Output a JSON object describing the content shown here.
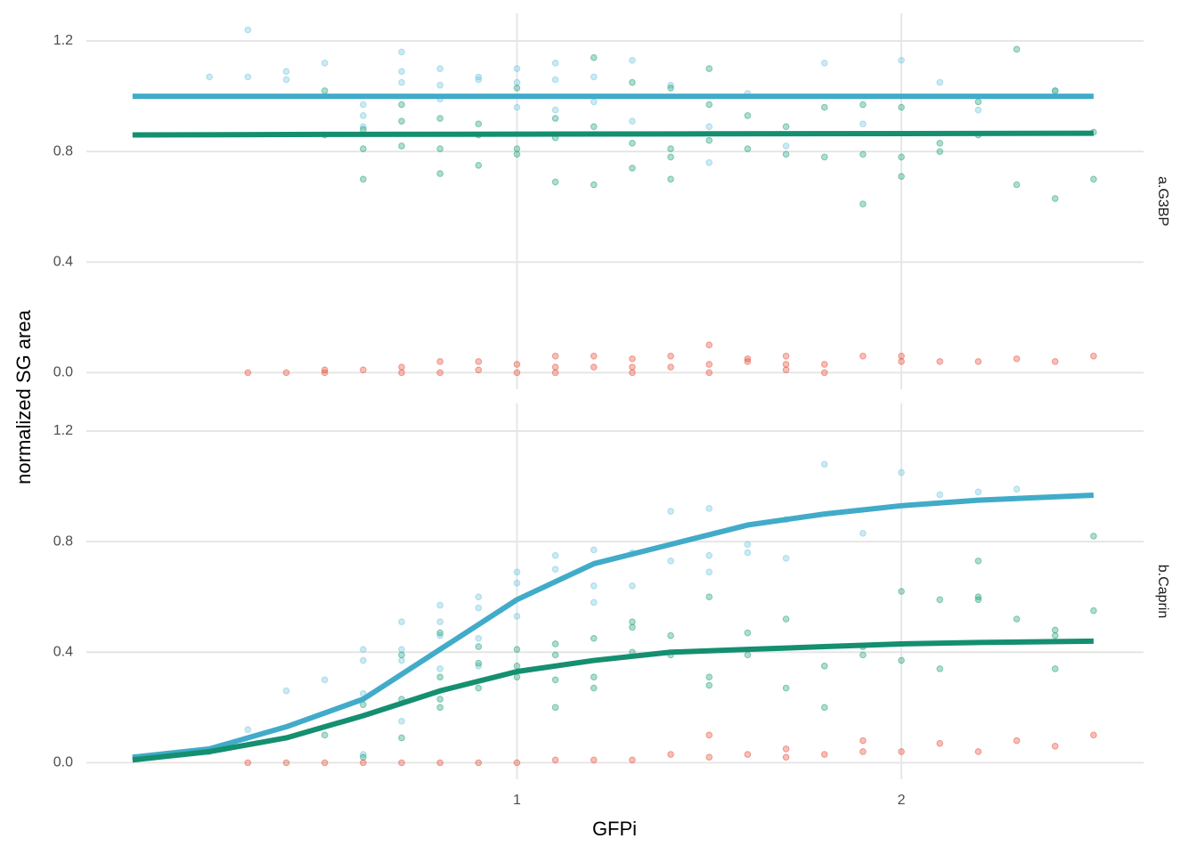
{
  "chart_data": [
    {
      "type": "scatter",
      "facet_label": "a.G3BP",
      "ylabel": "normalized SG area",
      "xlim": [
        -0.12,
        2.63
      ],
      "ylim": [
        -0.06,
        1.3
      ],
      "xticks": [
        1,
        2
      ],
      "yticks": [
        {
          "value": 0,
          "label": "0.0"
        },
        0.4,
        0.8,
        1.2
      ],
      "grid": true,
      "series": [
        {
          "type": "scatter",
          "color": "#6cc3dd",
          "x": [
            0.2,
            0.3,
            0.3,
            0.4,
            0.4,
            0.5,
            0.6,
            0.6,
            0.6,
            0.7,
            0.7,
            0.7,
            0.8,
            0.8,
            0.8,
            0.9,
            0.9,
            1.0,
            1.0,
            1.0,
            1.1,
            1.1,
            1.1,
            1.2,
            1.2,
            1.3,
            1.3,
            1.4,
            1.5,
            1.5,
            1.6,
            1.7,
            1.8,
            1.9,
            2.0,
            2.1,
            2.2,
            2.4
          ],
          "values": [
            1.07,
            1.24,
            1.07,
            1.09,
            1.06,
            1.12,
            0.97,
            0.93,
            0.89,
            1.16,
            1.09,
            1.05,
            1.1,
            1.04,
            0.99,
            1.07,
            1.06,
            1.1,
            1.05,
            0.96,
            1.12,
            1.06,
            0.95,
            1.07,
            0.98,
            1.13,
            0.91,
            1.04,
            0.89,
            0.76,
            1.01,
            0.82,
            1.12,
            0.9,
            1.13,
            1.05,
            0.95,
            1.02
          ]
        },
        {
          "type": "scatter",
          "color": "#1b9e77",
          "x": [
            0.5,
            0.5,
            0.6,
            0.6,
            0.6,
            0.7,
            0.7,
            0.7,
            0.8,
            0.8,
            0.8,
            0.9,
            0.9,
            0.9,
            1.0,
            1.0,
            1.0,
            1.1,
            1.1,
            1.1,
            1.2,
            1.2,
            1.2,
            1.3,
            1.3,
            1.3,
            1.4,
            1.4,
            1.4,
            1.4,
            1.5,
            1.5,
            1.5,
            1.6,
            1.6,
            1.7,
            1.7,
            1.8,
            1.8,
            1.9,
            1.9,
            1.9,
            2.0,
            2.0,
            2.0,
            2.1,
            2.1,
            2.2,
            2.2,
            2.3,
            2.3,
            2.4,
            2.4,
            2.5,
            2.5
          ],
          "values": [
            1.02,
            0.86,
            0.88,
            0.81,
            0.7,
            0.97,
            0.91,
            0.82,
            0.92,
            0.81,
            0.72,
            0.9,
            0.86,
            0.75,
            1.03,
            0.81,
            0.79,
            0.92,
            0.85,
            0.69,
            1.14,
            0.89,
            0.68,
            1.05,
            0.83,
            0.74,
            1.03,
            0.81,
            0.78,
            0.7,
            1.1,
            0.84,
            0.97,
            0.93,
            0.81,
            0.89,
            0.79,
            0.96,
            0.78,
            0.97,
            0.79,
            0.61,
            0.96,
            0.78,
            0.71,
            0.83,
            0.8,
            0.98,
            0.86,
            1.17,
            0.68,
            1.02,
            0.63,
            0.87,
            0.7
          ]
        },
        {
          "type": "scatter",
          "color": "#e64b35",
          "x": [
            0.3,
            0.4,
            0.5,
            0.5,
            0.6,
            0.7,
            0.7,
            0.8,
            0.8,
            0.9,
            0.9,
            1.0,
            1.0,
            1.1,
            1.1,
            1.1,
            1.2,
            1.2,
            1.3,
            1.3,
            1.3,
            1.4,
            1.4,
            1.5,
            1.5,
            1.5,
            1.6,
            1.6,
            1.7,
            1.7,
            1.7,
            1.8,
            1.8,
            1.9,
            2.0,
            2.0,
            2.1,
            2.2,
            2.3,
            2.4,
            2.5
          ],
          "values": [
            0,
            0,
            0.01,
            0,
            0.01,
            0.02,
            0,
            0.04,
            0,
            0.04,
            0.01,
            0.03,
            0,
            0.06,
            0.02,
            0,
            0.06,
            0.02,
            0.05,
            0.02,
            0,
            0.06,
            0.02,
            0.1,
            0.03,
            0,
            0.05,
            0.04,
            0.06,
            0.03,
            0.01,
            0.03,
            0,
            0.06,
            0.06,
            0.04,
            0.04,
            0.04,
            0.05,
            0.04,
            0.06
          ]
        },
        {
          "type": "line",
          "color": "#41abc9",
          "x": [
            0,
            0.5,
            1,
            1.5,
            2,
            2.5
          ],
          "values": [
            1,
            1,
            1,
            1,
            1,
            1
          ]
        },
        {
          "type": "line",
          "color": "#148f6f",
          "x": [
            0,
            0.5,
            1,
            1.5,
            2,
            2.5
          ],
          "values": [
            0.86,
            0.862,
            0.863,
            0.864,
            0.865,
            0.866
          ]
        }
      ]
    },
    {
      "type": "scatter",
      "facet_label": "b.Caprin",
      "xlabel": "GFPi",
      "xlim": [
        -0.12,
        2.63
      ],
      "ylim": [
        -0.06,
        1.3
      ],
      "xticks": [
        1,
        2
      ],
      "yticks": [
        {
          "value": 0,
          "label": "0.0"
        },
        0.4,
        0.8,
        1.2
      ],
      "grid": true,
      "series": [
        {
          "type": "scatter",
          "color": "#6cc3dd",
          "x": [
            0.2,
            0.3,
            0.4,
            0.5,
            0.6,
            0.6,
            0.6,
            0.6,
            0.7,
            0.7,
            0.7,
            0.7,
            0.8,
            0.8,
            0.8,
            0.8,
            0.9,
            0.9,
            0.9,
            0.9,
            1.0,
            1.0,
            1.0,
            1.1,
            1.1,
            1.2,
            1.2,
            1.2,
            1.3,
            1.3,
            1.4,
            1.4,
            1.5,
            1.5,
            1.5,
            1.6,
            1.6,
            1.7,
            1.7,
            1.8,
            1.9,
            2.0,
            2.1,
            2.2,
            2.3
          ],
          "values": [
            0.04,
            0.12,
            0.26,
            0.3,
            0.41,
            0.37,
            0.25,
            0.03,
            0.51,
            0.41,
            0.37,
            0.15,
            0.57,
            0.51,
            0.46,
            0.34,
            0.6,
            0.56,
            0.45,
            0.35,
            0.69,
            0.65,
            0.53,
            0.75,
            0.7,
            0.77,
            0.64,
            0.58,
            0.76,
            0.64,
            0.91,
            0.73,
            0.92,
            0.75,
            0.69,
            0.79,
            0.76,
            0.88,
            0.74,
            1.08,
            0.83,
            1.05,
            0.97,
            0.98,
            0.99
          ]
        },
        {
          "type": "scatter",
          "color": "#1b9e77",
          "x": [
            0.5,
            0.6,
            0.6,
            0.7,
            0.7,
            0.7,
            0.8,
            0.8,
            0.8,
            0.8,
            0.9,
            0.9,
            0.9,
            1.0,
            1.0,
            1.0,
            1.1,
            1.1,
            1.1,
            1.1,
            1.2,
            1.2,
            1.2,
            1.3,
            1.3,
            1.3,
            1.4,
            1.4,
            1.5,
            1.5,
            1.5,
            1.6,
            1.6,
            1.7,
            1.7,
            1.8,
            1.8,
            1.9,
            1.9,
            2.0,
            2.0,
            2.1,
            2.1,
            2.2,
            2.2,
            2.2,
            2.3,
            2.4,
            2.4,
            2.4,
            2.5,
            2.5
          ],
          "values": [
            0.1,
            0.21,
            0.02,
            0.39,
            0.23,
            0.09,
            0.47,
            0.31,
            0.23,
            0.2,
            0.42,
            0.36,
            0.27,
            0.41,
            0.35,
            0.31,
            0.43,
            0.39,
            0.3,
            0.2,
            0.45,
            0.31,
            0.27,
            0.51,
            0.49,
            0.4,
            0.46,
            0.39,
            0.6,
            0.31,
            0.28,
            0.47,
            0.39,
            0.52,
            0.27,
            0.35,
            0.2,
            0.42,
            0.39,
            0.62,
            0.37,
            0.59,
            0.34,
            0.73,
            0.6,
            0.59,
            0.52,
            0.48,
            0.46,
            0.34,
            0.82,
            0.55
          ]
        },
        {
          "type": "scatter",
          "color": "#e64b35",
          "x": [
            0.3,
            0.4,
            0.5,
            0.6,
            0.7,
            0.8,
            0.9,
            1.0,
            1.1,
            1.2,
            1.3,
            1.4,
            1.5,
            1.5,
            1.6,
            1.7,
            1.7,
            1.8,
            1.9,
            1.9,
            2.0,
            2.1,
            2.2,
            2.3,
            2.4,
            2.5
          ],
          "values": [
            0,
            0,
            0,
            0,
            0,
            0,
            0,
            0,
            0.01,
            0.01,
            0.01,
            0.03,
            0.1,
            0.02,
            0.03,
            0.05,
            0.02,
            0.03,
            0.08,
            0.04,
            0.04,
            0.07,
            0.04,
            0.08,
            0.06,
            0.1
          ]
        },
        {
          "type": "line",
          "color": "#41abc9",
          "x": [
            0,
            0.2,
            0.4,
            0.6,
            0.8,
            1.0,
            1.2,
            1.4,
            1.6,
            1.8,
            2.0,
            2.2,
            2.5
          ],
          "values": [
            0.02,
            0.05,
            0.13,
            0.23,
            0.41,
            0.59,
            0.72,
            0.79,
            0.86,
            0.9,
            0.93,
            0.95,
            0.968
          ]
        },
        {
          "type": "line",
          "color": "#148f6f",
          "x": [
            0,
            0.2,
            0.4,
            0.6,
            0.8,
            1.0,
            1.2,
            1.4,
            1.6,
            1.8,
            2.0,
            2.2,
            2.5
          ],
          "values": [
            0.01,
            0.04,
            0.09,
            0.17,
            0.26,
            0.33,
            0.37,
            0.4,
            0.41,
            0.42,
            0.43,
            0.435,
            0.44
          ]
        }
      ]
    }
  ]
}
